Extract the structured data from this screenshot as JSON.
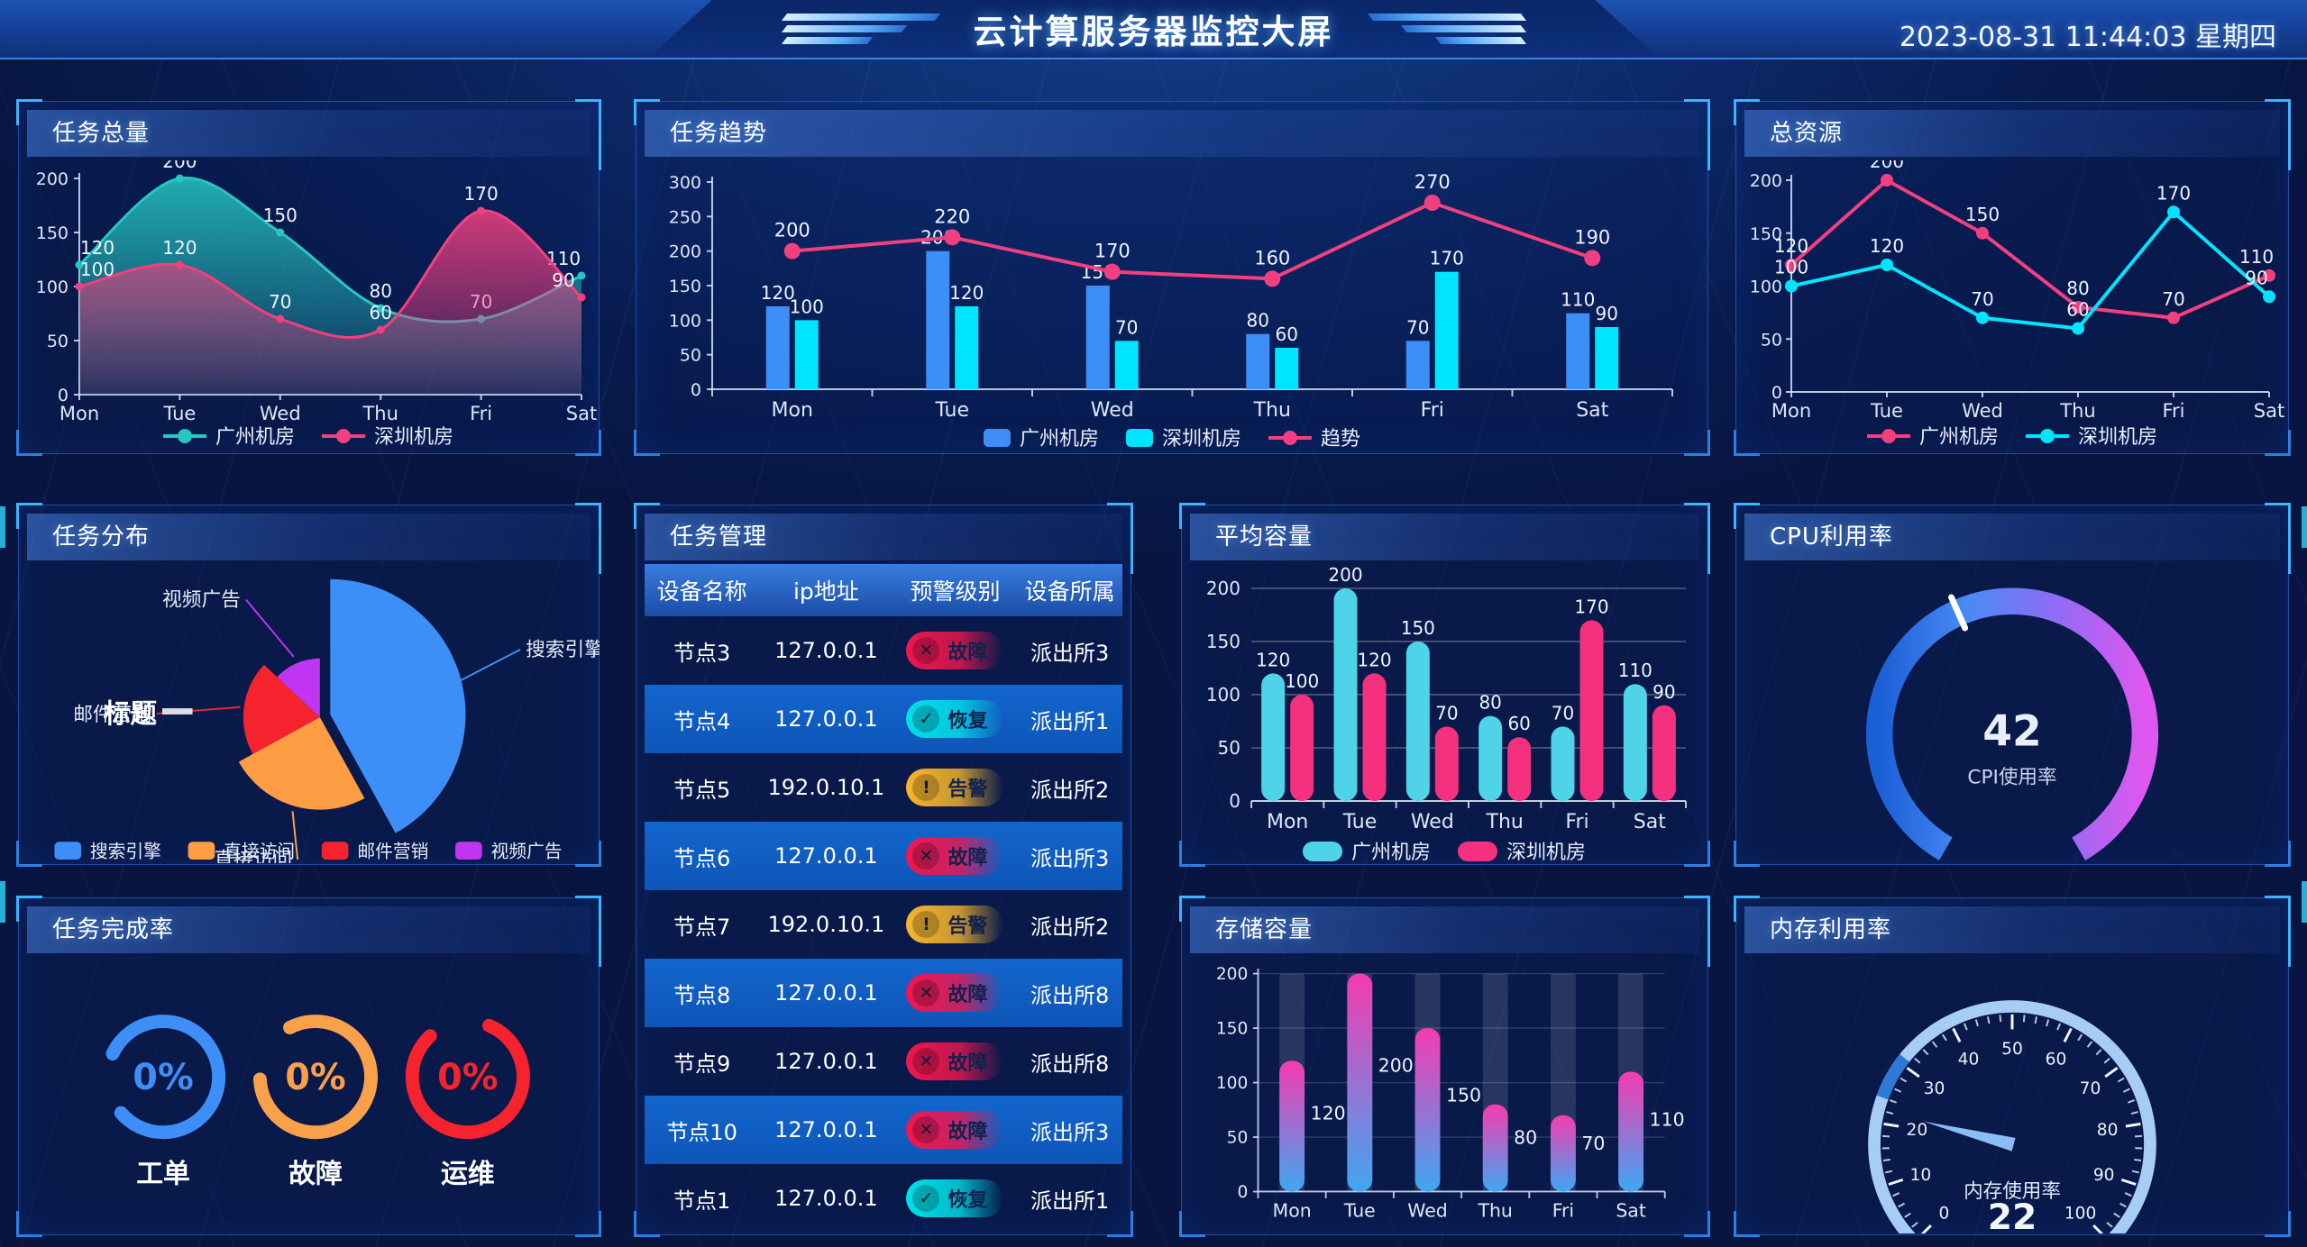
{
  "header": {
    "title": "云计算服务器监控大屏",
    "datetime": "2023-08-31 11:44:03 星期四"
  },
  "panels": {
    "task_total": {
      "title": "任务总量"
    },
    "task_trend": {
      "title": "任务趋势"
    },
    "total_resource": {
      "title": "总资源"
    },
    "task_distribution": {
      "title": "任务分布"
    },
    "task_management": {
      "title": "任务管理"
    },
    "avg_capacity": {
      "title": "平均容量"
    },
    "cpu_usage": {
      "title": "CPU利用率"
    },
    "task_completion": {
      "title": "任务完成率"
    },
    "storage": {
      "title": "存储容量"
    },
    "memory_usage": {
      "title": "内存利用率"
    }
  },
  "table": {
    "headers": [
      "设备名称",
      "ip地址",
      "预警级别",
      "设备所属"
    ],
    "status_styles": {
      "故障": {
        "color": "#f1164f",
        "icon": "✕"
      },
      "恢复": {
        "color": "#00e0e8",
        "icon": "✓"
      },
      "告警": {
        "color": "#f7b52c",
        "icon": "!"
      }
    },
    "rows": [
      {
        "name": "节点3",
        "ip": "127.0.0.1",
        "status": "故障",
        "org": "派出所3"
      },
      {
        "name": "节点4",
        "ip": "127.0.0.1",
        "status": "恢复",
        "org": "派出所1"
      },
      {
        "name": "节点5",
        "ip": "192.0.10.1",
        "status": "告警",
        "org": "派出所2"
      },
      {
        "name": "节点6",
        "ip": "127.0.0.1",
        "status": "故障",
        "org": "派出所3"
      },
      {
        "name": "节点7",
        "ip": "192.0.10.1",
        "status": "告警",
        "org": "派出所2"
      },
      {
        "name": "节点8",
        "ip": "127.0.0.1",
        "status": "故障",
        "org": "派出所8"
      },
      {
        "name": "节点9",
        "ip": "127.0.0.1",
        "status": "故障",
        "org": "派出所8"
      },
      {
        "name": "节点10",
        "ip": "127.0.0.1",
        "status": "故障",
        "org": "派出所3"
      },
      {
        "name": "节点1",
        "ip": "127.0.0.1",
        "status": "恢复",
        "org": "派出所1"
      }
    ]
  },
  "chart_data": [
    {
      "id": "task_total",
      "type": "area",
      "title": "任务总量",
      "categories": [
        "Mon",
        "Tue",
        "Wed",
        "Thu",
        "Fri",
        "Sat"
      ],
      "series": [
        {
          "name": "广州机房",
          "color": "#26c6c2",
          "values": [
            120,
            200,
            150,
            80,
            70,
            110
          ]
        },
        {
          "name": "深圳机房",
          "color": "#f23f7f",
          "values": [
            100,
            120,
            70,
            60,
            170,
            90
          ]
        }
      ],
      "ylim": [
        0,
        200
      ],
      "ytick": 50,
      "legend_position": "bottom",
      "grid": false
    },
    {
      "id": "task_trend",
      "type": "bar-line",
      "title": "任务趋势",
      "categories": [
        "Mon",
        "Tue",
        "Wed",
        "Thu",
        "Fri",
        "Sat"
      ],
      "series": [
        {
          "name": "广州机房",
          "kind": "bar",
          "color": "#3e8ef7",
          "values": [
            120,
            200,
            150,
            80,
            70,
            110
          ]
        },
        {
          "name": "深圳机房",
          "kind": "bar",
          "color": "#00e5ff",
          "values": [
            100,
            120,
            70,
            60,
            170,
            90
          ]
        },
        {
          "name": "趋势",
          "kind": "line",
          "color": "#f23f7f",
          "values": [
            200,
            220,
            170,
            160,
            270,
            190
          ]
        }
      ],
      "ylim": [
        0,
        300
      ],
      "ytick": 50,
      "legend_position": "bottom",
      "grid": false
    },
    {
      "id": "total_resource",
      "type": "line",
      "title": "总资源",
      "categories": [
        "Mon",
        "Tue",
        "Wed",
        "Thu",
        "Fri",
        "Sat"
      ],
      "series": [
        {
          "name": "广州机房",
          "color": "#f23f7f",
          "values": [
            120,
            200,
            150,
            80,
            70,
            110
          ]
        },
        {
          "name": "深圳机房",
          "color": "#00e5ff",
          "values": [
            100,
            120,
            70,
            60,
            170,
            90
          ]
        }
      ],
      "ylim": [
        0,
        200
      ],
      "ytick": 50,
      "legend_position": "bottom",
      "grid": false
    },
    {
      "id": "task_distribution",
      "type": "rose-pie",
      "title": "任务分布",
      "items": [
        {
          "name": "搜索引擎",
          "color": "#3e8ef7",
          "percent": 42,
          "radius": 152
        },
        {
          "name": "直接访问",
          "color": "#ff9d45",
          "percent": 25,
          "radius": 104
        },
        {
          "name": "邮件营销",
          "color": "#f5232d",
          "percent": 20,
          "radius": 86
        },
        {
          "name": "视频广告",
          "color": "#bf35f2",
          "percent": 13,
          "radius": 66
        }
      ],
      "overlap_label": "标题",
      "legend_position": "bottom"
    },
    {
      "id": "avg_capacity",
      "type": "round-bar",
      "title": "平均容量",
      "categories": [
        "Mon",
        "Tue",
        "Wed",
        "Thu",
        "Fri",
        "Sat"
      ],
      "series": [
        {
          "name": "广州机房",
          "color": "#4fd3e8",
          "values": [
            120,
            200,
            150,
            80,
            70,
            110
          ]
        },
        {
          "name": "深圳机房",
          "color": "#f5317f",
          "values": [
            100,
            120,
            70,
            60,
            170,
            90
          ]
        }
      ],
      "ylim": [
        0,
        200
      ],
      "ytick": 50,
      "legend_position": "bottom",
      "grid": true
    },
    {
      "id": "cpu_gauge",
      "type": "arc-gauge",
      "title": "CPU利用率",
      "value": 42,
      "min": 0,
      "max": 100,
      "label": "CPI使用率",
      "colors": [
        "#1b5fd6",
        "#4a8af5",
        "#8f6cf5",
        "#e057ef"
      ],
      "marker_color": "#ffffff"
    },
    {
      "id": "completion",
      "type": "rings",
      "title": "任务完成率",
      "items": [
        {
          "label": "工单",
          "value": "0%",
          "color": "#3e8ef7",
          "gap_center": 262
        },
        {
          "label": "故障",
          "value": "0%",
          "color": "#f9a04a",
          "gap_center": 300
        },
        {
          "label": "运维",
          "value": "0%",
          "color": "#f5232d",
          "gap_center": 350
        }
      ]
    },
    {
      "id": "storage",
      "type": "gradient-bar",
      "title": "存储容量",
      "categories": [
        "Mon",
        "Tue",
        "Wed",
        "Thu",
        "Fri",
        "Sat"
      ],
      "values": [
        120,
        200,
        150,
        80,
        70,
        110
      ],
      "track_max": 200,
      "ylim": [
        0,
        200
      ],
      "ytick": 50,
      "color_top": "#f63bb0",
      "color_bottom": "#3fa7f2",
      "grid": true
    },
    {
      "id": "mem_gauge",
      "type": "speedo-gauge",
      "title": "内存利用率",
      "value": 22,
      "min": 0,
      "max": 100,
      "tick_step": 10,
      "label": "内存使用率",
      "arc_color": "#a7cdf6",
      "segment": {
        "from": 24,
        "to": 31,
        "color": "#2e79d8"
      },
      "tick_labels": [
        0,
        10,
        20,
        30,
        40,
        50,
        60,
        70,
        80,
        90,
        100
      ]
    }
  ]
}
